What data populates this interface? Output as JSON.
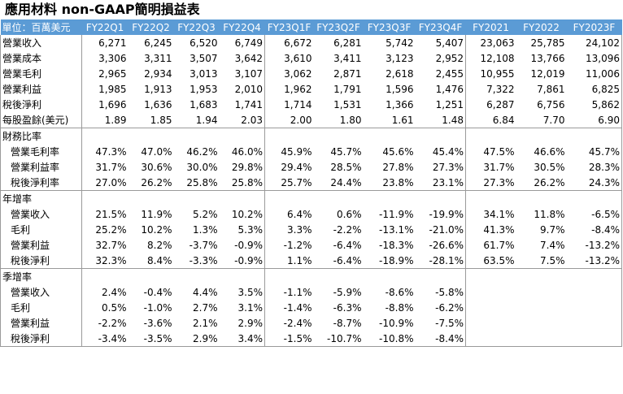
{
  "title": "應用材料 non-GAAP簡明損益表",
  "unit_label": "單位：百萬美元",
  "columns": [
    "FY22Q1",
    "FY22Q2",
    "FY22Q3",
    "FY22Q4",
    "FY23Q1F",
    "FY23Q2F",
    "FY23Q3F",
    "FY23Q4F",
    "FY2021",
    "FY2022",
    "FY2023F"
  ],
  "income": [
    {
      "label": "營業收入",
      "values": [
        "6,271",
        "6,245",
        "6,520",
        "6,749",
        "6,672",
        "6,281",
        "5,742",
        "5,407",
        "23,063",
        "25,785",
        "24,102"
      ]
    },
    {
      "label": "營業成本",
      "values": [
        "3,306",
        "3,311",
        "3,507",
        "3,642",
        "3,610",
        "3,411",
        "3,123",
        "2,952",
        "12,108",
        "13,766",
        "13,096"
      ]
    },
    {
      "label": "營業毛利",
      "values": [
        "2,965",
        "2,934",
        "3,013",
        "3,107",
        "3,062",
        "2,871",
        "2,618",
        "2,455",
        "10,955",
        "12,019",
        "11,006"
      ]
    },
    {
      "label": "營業利益",
      "values": [
        "1,985",
        "1,913",
        "1,953",
        "2,010",
        "1,962",
        "1,791",
        "1,596",
        "1,476",
        "7,322",
        "7,861",
        "6,825"
      ]
    },
    {
      "label": "稅後淨利",
      "values": [
        "1,696",
        "1,636",
        "1,683",
        "1,741",
        "1,714",
        "1,531",
        "1,366",
        "1,251",
        "6,287",
        "6,756",
        "5,862"
      ]
    },
    {
      "label": "每股盈餘(美元)",
      "values": [
        "1.89",
        "1.85",
        "1.94",
        "2.03",
        "2.00",
        "1.80",
        "1.61",
        "1.48",
        "6.84",
        "7.70",
        "6.90"
      ]
    }
  ],
  "ratios": {
    "title": "財務比率",
    "rows": [
      {
        "label": "營業毛利率",
        "values": [
          "47.3%",
          "47.0%",
          "46.2%",
          "46.0%",
          "45.9%",
          "45.7%",
          "45.6%",
          "45.4%",
          "47.5%",
          "46.6%",
          "45.7%"
        ]
      },
      {
        "label": "營業利益率",
        "values": [
          "31.7%",
          "30.6%",
          "30.0%",
          "29.8%",
          "29.4%",
          "28.5%",
          "27.8%",
          "27.3%",
          "31.7%",
          "30.5%",
          "28.3%"
        ]
      },
      {
        "label": "稅後淨利率",
        "values": [
          "27.0%",
          "26.2%",
          "25.8%",
          "25.8%",
          "25.7%",
          "24.4%",
          "23.8%",
          "23.1%",
          "27.3%",
          "26.2%",
          "24.3%"
        ]
      }
    ]
  },
  "yoy": {
    "title": "年增率",
    "rows": [
      {
        "label": "營業收入",
        "values": [
          "21.5%",
          "11.9%",
          "5.2%",
          "10.2%",
          "6.4%",
          "0.6%",
          "-11.9%",
          "-19.9%",
          "34.1%",
          "11.8%",
          "-6.5%"
        ]
      },
      {
        "label": "毛利",
        "values": [
          "25.2%",
          "10.2%",
          "1.3%",
          "5.3%",
          "3.3%",
          "-2.2%",
          "-13.1%",
          "-21.0%",
          "41.3%",
          "9.7%",
          "-8.4%"
        ]
      },
      {
        "label": "營業利益",
        "values": [
          "32.7%",
          "8.2%",
          "-3.7%",
          "-0.9%",
          "-1.2%",
          "-6.4%",
          "-18.3%",
          "-26.6%",
          "61.7%",
          "7.4%",
          "-13.2%"
        ]
      },
      {
        "label": "稅後淨利",
        "values": [
          "32.3%",
          "8.4%",
          "-3.3%",
          "-0.9%",
          "1.1%",
          "-6.4%",
          "-18.9%",
          "-28.1%",
          "63.5%",
          "7.5%",
          "-13.2%"
        ]
      }
    ]
  },
  "qoq": {
    "title": "季增率",
    "rows": [
      {
        "label": "營業收入",
        "values": [
          "2.4%",
          "-0.4%",
          "4.4%",
          "3.5%",
          "-1.1%",
          "-5.9%",
          "-8.6%",
          "-5.8%",
          "",
          "",
          ""
        ]
      },
      {
        "label": "毛利",
        "values": [
          "0.5%",
          "-1.0%",
          "2.7%",
          "3.1%",
          "-1.4%",
          "-6.3%",
          "-8.8%",
          "-6.2%",
          "",
          "",
          ""
        ]
      },
      {
        "label": "營業利益",
        "values": [
          "-2.2%",
          "-3.6%",
          "2.1%",
          "2.9%",
          "-2.4%",
          "-8.7%",
          "-10.9%",
          "-7.5%",
          "",
          "",
          ""
        ]
      },
      {
        "label": "稅後淨利",
        "values": [
          "-3.4%",
          "-3.5%",
          "2.9%",
          "3.4%",
          "-1.5%",
          "-10.7%",
          "-10.8%",
          "-8.4%",
          "",
          "",
          ""
        ]
      }
    ]
  }
}
